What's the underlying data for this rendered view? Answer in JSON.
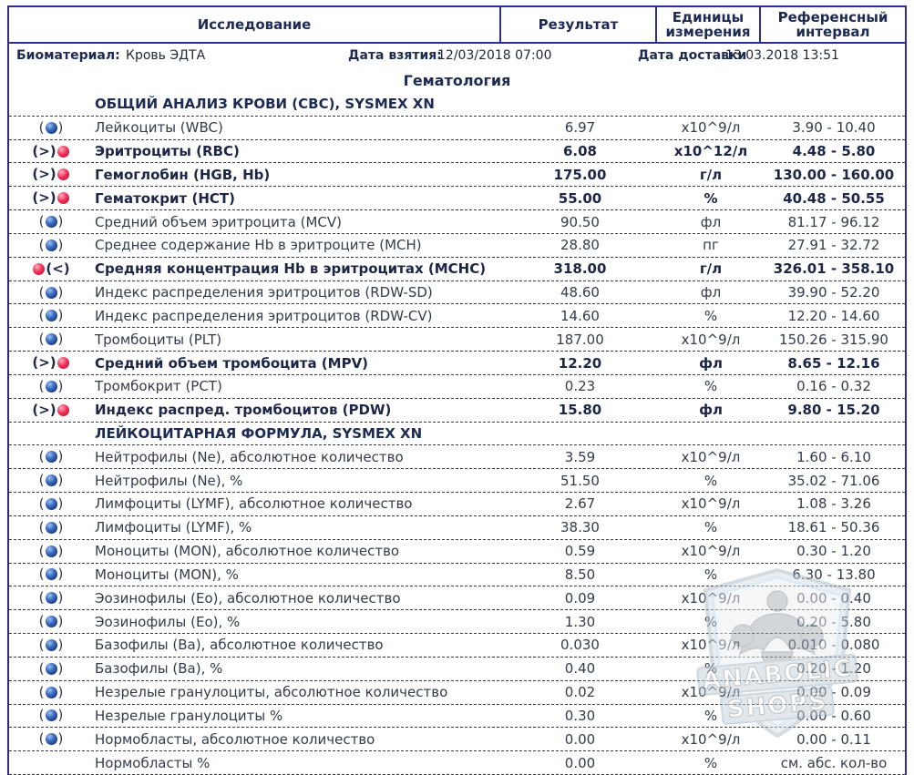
{
  "colors": {
    "table_border_navy": "#2b2f8e",
    "normal_flag_blue": "#2a55a8",
    "abnormal_flag_red": "#e8194a",
    "header_text_navy": "#1d2a52"
  },
  "header": {
    "columns": [
      "Исследование",
      "Результат",
      "Единицы измерения",
      "Референсный интервал"
    ]
  },
  "info": {
    "biomaterial_label": "Биоматериал:",
    "biomaterial_value": "Кровь ЭДТА",
    "collection_label": "Дата взятия:",
    "collection_value": "12/03/2018 07:00",
    "delivery_label": "Дата доставки",
    "delivery_value": "13.03.2018 13:51"
  },
  "section_title": "Гематология",
  "watermark": {
    "line1": "ANABOLIC",
    "line2": "SHOPS"
  },
  "rows": [
    {
      "type": "section",
      "name": "ОБЩИЙ АНАЛИЗ КРОВИ (CBC), SYSMEX XN"
    },
    {
      "type": "test",
      "flag": "normal",
      "bold": false,
      "name": "Лейкоциты (WBC)",
      "result": "6.97",
      "units": "x10^9/л",
      "ref": "3.90 - 10.40"
    },
    {
      "type": "test",
      "flag": "high",
      "bold": true,
      "name": "Эритроциты (RBC)",
      "result": "6.08",
      "units": "x10^12/л",
      "ref": "4.48 - 5.80"
    },
    {
      "type": "test",
      "flag": "high",
      "bold": true,
      "name": "Гемоглобин (HGB, Hb)",
      "result": "175.00",
      "units": "г/л",
      "ref": "130.00 - 160.00"
    },
    {
      "type": "test",
      "flag": "high",
      "bold": true,
      "name": "Гематокрит (HCT)",
      "result": "55.00",
      "units": "%",
      "ref": "40.48 - 50.55"
    },
    {
      "type": "test",
      "flag": "normal",
      "bold": false,
      "name": "Средний объем эритроцита (MCV)",
      "result": "90.50",
      "units": "фл",
      "ref": "81.17 - 96.12"
    },
    {
      "type": "test",
      "flag": "normal",
      "bold": false,
      "name": "Среднее содержание Hb в эритроците (MCH)",
      "result": "28.80",
      "units": "пг",
      "ref": "27.91 - 32.72"
    },
    {
      "type": "test",
      "flag": "low",
      "bold": true,
      "name": "Средняя концентрация Hb в эритроцитах (MCHC)",
      "result": "318.00",
      "units": "г/л",
      "ref": "326.01 - 358.10"
    },
    {
      "type": "test",
      "flag": "normal",
      "bold": false,
      "name": "Индекс распределения эритроцитов (RDW-SD)",
      "result": "48.60",
      "units": "фл",
      "ref": "39.90 - 52.20"
    },
    {
      "type": "test",
      "flag": "normal",
      "bold": false,
      "name": "Индекс распределения эритроцитов (RDW-CV)",
      "result": "14.60",
      "units": "%",
      "ref": "12.20 - 14.60"
    },
    {
      "type": "test",
      "flag": "normal",
      "bold": false,
      "name": "Тромбоциты (PLT)",
      "result": "187.00",
      "units": "x10^9/л",
      "ref": "150.26 - 315.90"
    },
    {
      "type": "test",
      "flag": "high",
      "bold": true,
      "name": "Средний объем тромбоцита (MPV)",
      "result": "12.20",
      "units": "фл",
      "ref": "8.65 - 12.16"
    },
    {
      "type": "test",
      "flag": "normal",
      "bold": false,
      "name": "Тромбокрит (PCT)",
      "result": "0.23",
      "units": "%",
      "ref": "0.16 - 0.32"
    },
    {
      "type": "test",
      "flag": "high",
      "bold": true,
      "name": "Индекс распред. тромбоцитов (PDW)",
      "result": "15.80",
      "units": "фл",
      "ref": "9.80 - 15.20"
    },
    {
      "type": "section",
      "name": "ЛЕЙКОЦИТАРНАЯ ФОРМУЛА, SYSMEX XN"
    },
    {
      "type": "test",
      "flag": "normal",
      "bold": false,
      "name": "Нейтрофилы (Ne), абсолютное количество",
      "result": "3.59",
      "units": "x10^9/л",
      "ref": "1.60 - 6.10"
    },
    {
      "type": "test",
      "flag": "normal",
      "bold": false,
      "name": "Нейтрофилы (Ne), %",
      "result": "51.50",
      "units": "%",
      "ref": "35.02 - 71.06"
    },
    {
      "type": "test",
      "flag": "normal",
      "bold": false,
      "name": "Лимфоциты (LYMF), абсолютное количество",
      "result": "2.67",
      "units": "x10^9/л",
      "ref": "1.08 - 3.26"
    },
    {
      "type": "test",
      "flag": "normal",
      "bold": false,
      "name": "Лимфоциты (LYMF), %",
      "result": "38.30",
      "units": "%",
      "ref": "18.61 - 50.36"
    },
    {
      "type": "test",
      "flag": "normal",
      "bold": false,
      "name": "Моноциты (MON), абсолютное количество",
      "result": "0.59",
      "units": "x10^9/л",
      "ref": "0.30 - 1.20"
    },
    {
      "type": "test",
      "flag": "normal",
      "bold": false,
      "name": "Моноциты (MON), %",
      "result": "8.50",
      "units": "%",
      "ref": "6.30 - 13.80"
    },
    {
      "type": "test",
      "flag": "normal",
      "bold": false,
      "name": "Эозинофилы (Eo), абсолютное количество",
      "result": "0.09",
      "units": "x10^9/л",
      "ref": "0.00 - 0.40"
    },
    {
      "type": "test",
      "flag": "normal",
      "bold": false,
      "name": "Эозинофилы (Eo), %",
      "result": "1.30",
      "units": "%",
      "ref": "0.20 - 5.80"
    },
    {
      "type": "test",
      "flag": "normal",
      "bold": false,
      "name": "Базофилы (Ba), абсолютное количество",
      "result": "0.030",
      "units": "x10^9/л",
      "ref": "0.010 - 0.080"
    },
    {
      "type": "test",
      "flag": "normal",
      "bold": false,
      "name": "Базофилы (Ba), %",
      "result": "0.40",
      "units": "%",
      "ref": "0.20 - 1.20"
    },
    {
      "type": "test",
      "flag": "normal",
      "bold": false,
      "name": "Незрелые гранулоциты, абсолютное количество",
      "result": "0.02",
      "units": "x10^9/л",
      "ref": "0.00 - 0.09"
    },
    {
      "type": "test",
      "flag": "normal",
      "bold": false,
      "name": "Незрелые гранулоциты %",
      "result": "0.30",
      "units": "%",
      "ref": "0.00 - 0.60"
    },
    {
      "type": "test",
      "flag": "normal",
      "bold": false,
      "name": "Нормобласты, абсолютное количество",
      "result": "0.00",
      "units": "x10^9/л",
      "ref": "0.00 - 0.11"
    },
    {
      "type": "test",
      "flag": "none",
      "bold": false,
      "name": "Нормобласты %",
      "result": "0.00",
      "units": "%",
      "ref": "см. абс. кол-во"
    }
  ]
}
